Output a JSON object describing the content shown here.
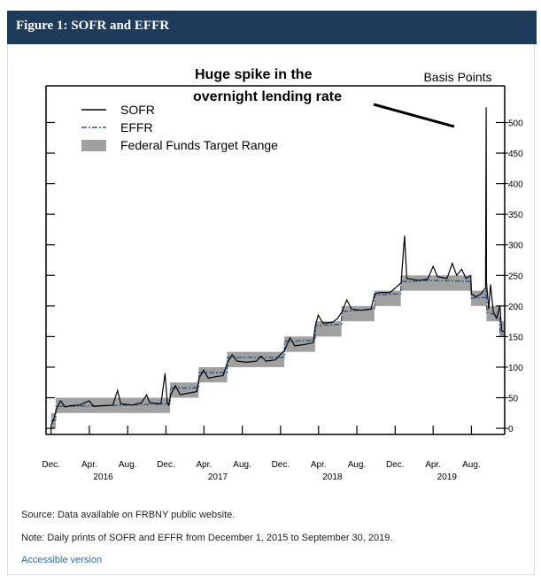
{
  "header": {
    "title": "Figure 1: SOFR and EFFR"
  },
  "footer": {
    "source": "Source: Data available on FRBNY public website.",
    "note": "Note: Daily prints of SOFR and EFFR from December 1, 2015 to September 30, 2019.",
    "link": "Accessible version"
  },
  "colors": {
    "header_bg": "#1f3b5c",
    "sofr": "#000000",
    "effr": "#2c5a8a",
    "range": "#a0a0a0"
  },
  "chart_data": {
    "type": "line",
    "title": "",
    "annotation": [
      "Huge spike in the",
      "overnight lending rate"
    ],
    "ylabel": "Basis Points",
    "ylim": [
      -10,
      560
    ],
    "yticks": [
      0,
      50,
      100,
      150,
      200,
      250,
      300,
      350,
      400,
      450,
      500
    ],
    "xlim": [
      "2015-11-15",
      "2019-11-15"
    ],
    "month_ticks": [
      {
        "date": "2015-12-01",
        "label": "Dec."
      },
      {
        "date": "2016-04-01",
        "label": "Apr."
      },
      {
        "date": "2016-08-01",
        "label": "Aug."
      },
      {
        "date": "2016-12-01",
        "label": "Dec."
      },
      {
        "date": "2017-04-01",
        "label": "Apr."
      },
      {
        "date": "2017-08-01",
        "label": "Aug."
      },
      {
        "date": "2017-12-01",
        "label": "Dec."
      },
      {
        "date": "2018-04-01",
        "label": "Apr."
      },
      {
        "date": "2018-08-01",
        "label": "Aug."
      },
      {
        "date": "2018-12-01",
        "label": "Dec."
      },
      {
        "date": "2019-04-01",
        "label": "Apr."
      },
      {
        "date": "2019-08-01",
        "label": "Aug."
      }
    ],
    "year_labels": [
      {
        "date": "2016-06-01",
        "label": "2016"
      },
      {
        "date": "2017-06-01",
        "label": "2017"
      },
      {
        "date": "2018-06-01",
        "label": "2018"
      },
      {
        "date": "2019-06-01",
        "label": "2019"
      }
    ],
    "legend": {
      "placement": "top-left",
      "entries": [
        "SOFR",
        "EFFR",
        "Federal Funds Target Range"
      ]
    },
    "target_range": [
      {
        "start": "2015-12-01",
        "end": "2015-12-16",
        "low": 0,
        "high": 25
      },
      {
        "start": "2015-12-16",
        "end": "2016-12-14",
        "low": 25,
        "high": 50
      },
      {
        "start": "2016-12-14",
        "end": "2017-03-15",
        "low": 50,
        "high": 75
      },
      {
        "start": "2017-03-15",
        "end": "2017-06-14",
        "low": 75,
        "high": 100
      },
      {
        "start": "2017-06-14",
        "end": "2017-12-13",
        "low": 100,
        "high": 125
      },
      {
        "start": "2017-12-13",
        "end": "2018-03-21",
        "low": 125,
        "high": 150
      },
      {
        "start": "2018-03-21",
        "end": "2018-06-13",
        "low": 150,
        "high": 175
      },
      {
        "start": "2018-06-13",
        "end": "2018-09-26",
        "low": 175,
        "high": 200
      },
      {
        "start": "2018-09-26",
        "end": "2018-12-19",
        "low": 200,
        "high": 225
      },
      {
        "start": "2018-12-19",
        "end": "2019-07-31",
        "low": 225,
        "high": 250
      },
      {
        "start": "2019-07-31",
        "end": "2019-09-18",
        "low": 200,
        "high": 225
      },
      {
        "start": "2019-09-18",
        "end": "2019-10-30",
        "low": 175,
        "high": 200
      },
      {
        "start": "2019-10-30",
        "end": "2019-11-15",
        "low": 150,
        "high": 175
      }
    ],
    "series": [
      {
        "name": "SOFR",
        "points": [
          [
            "2015-12-01",
            5
          ],
          [
            "2015-12-10",
            15
          ],
          [
            "2015-12-17",
            30
          ],
          [
            "2015-12-31",
            45
          ],
          [
            "2016-01-15",
            35
          ],
          [
            "2016-02-01",
            37
          ],
          [
            "2016-03-01",
            38
          ],
          [
            "2016-03-31",
            45
          ],
          [
            "2016-04-15",
            36
          ],
          [
            "2016-05-15",
            37
          ],
          [
            "2016-06-15",
            38
          ],
          [
            "2016-06-30",
            62
          ],
          [
            "2016-07-10",
            40
          ],
          [
            "2016-08-15",
            38
          ],
          [
            "2016-09-15",
            42
          ],
          [
            "2016-09-30",
            55
          ],
          [
            "2016-10-10",
            42
          ],
          [
            "2016-11-15",
            40
          ],
          [
            "2016-11-28",
            90
          ],
          [
            "2016-12-05",
            42
          ],
          [
            "2016-12-10",
            38
          ],
          [
            "2016-12-16",
            55
          ],
          [
            "2016-12-31",
            70
          ],
          [
            "2017-01-15",
            55
          ],
          [
            "2017-02-15",
            58
          ],
          [
            "2017-03-10",
            60
          ],
          [
            "2017-03-16",
            82
          ],
          [
            "2017-03-31",
            95
          ],
          [
            "2017-04-15",
            82
          ],
          [
            "2017-05-15",
            85
          ],
          [
            "2017-06-01",
            86
          ],
          [
            "2017-06-15",
            108
          ],
          [
            "2017-06-30",
            120
          ],
          [
            "2017-07-15",
            110
          ],
          [
            "2017-08-15",
            108
          ],
          [
            "2017-09-15",
            110
          ],
          [
            "2017-09-30",
            118
          ],
          [
            "2017-10-15",
            110
          ],
          [
            "2017-11-15",
            112
          ],
          [
            "2017-12-14",
            128
          ],
          [
            "2017-12-31",
            148
          ],
          [
            "2018-01-15",
            135
          ],
          [
            "2018-02-15",
            137
          ],
          [
            "2018-03-15",
            140
          ],
          [
            "2018-03-22",
            168
          ],
          [
            "2018-03-31",
            185
          ],
          [
            "2018-04-15",
            172
          ],
          [
            "2018-05-15",
            173
          ],
          [
            "2018-06-01",
            180
          ],
          [
            "2018-06-14",
            190
          ],
          [
            "2018-06-30",
            210
          ],
          [
            "2018-07-15",
            195
          ],
          [
            "2018-08-15",
            193
          ],
          [
            "2018-09-15",
            195
          ],
          [
            "2018-09-27",
            220
          ],
          [
            "2018-10-15",
            222
          ],
          [
            "2018-11-15",
            222
          ],
          [
            "2018-12-20",
            238
          ],
          [
            "2018-12-31",
            315
          ],
          [
            "2019-01-07",
            245
          ],
          [
            "2019-02-15",
            242
          ],
          [
            "2019-03-15",
            244
          ],
          [
            "2019-04-01",
            265
          ],
          [
            "2019-04-15",
            248
          ],
          [
            "2019-05-15",
            245
          ],
          [
            "2019-06-01",
            270
          ],
          [
            "2019-06-15",
            250
          ],
          [
            "2019-07-01",
            260
          ],
          [
            "2019-07-15",
            245
          ],
          [
            "2019-07-30",
            250
          ],
          [
            "2019-08-01",
            220
          ],
          [
            "2019-08-15",
            215
          ],
          [
            "2019-09-01",
            220
          ],
          [
            "2019-09-15",
            230
          ],
          [
            "2019-09-17",
            525
          ],
          [
            "2019-09-18",
            240
          ],
          [
            "2019-09-25",
            195
          ],
          [
            "2019-10-01",
            235
          ],
          [
            "2019-10-10",
            190
          ],
          [
            "2019-10-20",
            180
          ],
          [
            "2019-10-31",
            200
          ],
          [
            "2019-11-05",
            160
          ],
          [
            "2019-11-12",
            158
          ]
        ]
      },
      {
        "name": "EFFR",
        "points": [
          [
            "2015-12-01",
            12
          ],
          [
            "2015-12-16",
            14
          ],
          [
            "2015-12-17",
            36
          ],
          [
            "2016-06-01",
            37
          ],
          [
            "2016-12-14",
            40
          ],
          [
            "2016-12-15",
            66
          ],
          [
            "2017-03-15",
            66
          ],
          [
            "2017-03-16",
            91
          ],
          [
            "2017-06-14",
            91
          ],
          [
            "2017-06-15",
            116
          ],
          [
            "2017-12-13",
            116
          ],
          [
            "2017-12-14",
            142
          ],
          [
            "2018-03-21",
            144
          ],
          [
            "2018-03-22",
            168
          ],
          [
            "2018-06-13",
            170
          ],
          [
            "2018-06-14",
            191
          ],
          [
            "2018-09-26",
            195
          ],
          [
            "2018-09-27",
            218
          ],
          [
            "2018-12-19",
            220
          ],
          [
            "2018-12-20",
            240
          ],
          [
            "2019-04-15",
            242
          ],
          [
            "2019-07-31",
            240
          ],
          [
            "2019-08-01",
            213
          ],
          [
            "2019-09-16",
            214
          ],
          [
            "2019-09-17",
            230
          ],
          [
            "2019-09-19",
            190
          ],
          [
            "2019-10-30",
            183
          ],
          [
            "2019-10-31",
            155
          ],
          [
            "2019-11-12",
            155
          ]
        ]
      }
    ]
  }
}
